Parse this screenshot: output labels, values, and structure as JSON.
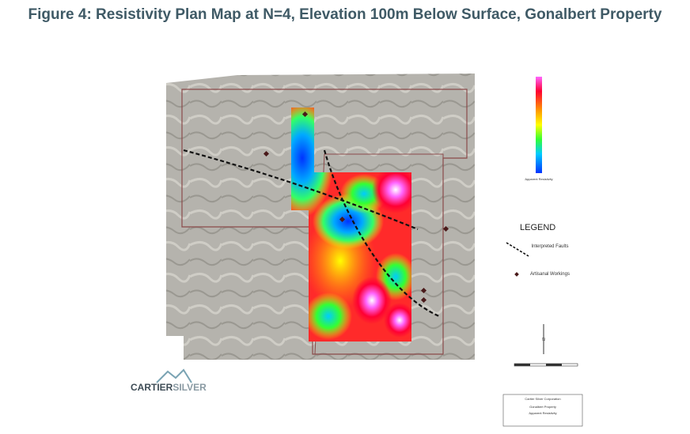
{
  "title": "Figure 4: Resistivity Plan Map at N=4, Elevation 100m Below Surface, Gonalbert Property",
  "colorbar": {
    "label": "Apparent Resistivity"
  },
  "legend": {
    "title": "LEGEND",
    "items": [
      "Interpreted Faults",
      "Artisanal Workings"
    ]
  },
  "logo": {
    "part1": "CARTIER",
    "part2": "SILVER"
  },
  "north": "N",
  "title_block": {
    "company": "Cartier Silver Corporation",
    "property": "Gonalbert Property",
    "layer": "Apparent Resistivity"
  }
}
